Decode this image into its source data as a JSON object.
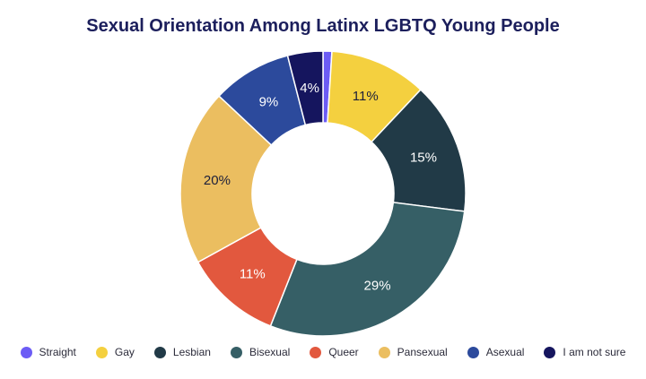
{
  "chart_data": {
    "type": "pie",
    "title": "Sexual Orientation Among Latinx LGBTQ Young People",
    "donut": true,
    "legend_position": "bottom",
    "slices": [
      {
        "label": "Straight",
        "value": 1,
        "display": "",
        "color": "#6c5cf5"
      },
      {
        "label": "Gay",
        "value": 11,
        "display": "11%",
        "color": "#f4d03f"
      },
      {
        "label": "Lesbian",
        "value": 15,
        "display": "15%",
        "color": "#213a47"
      },
      {
        "label": "Bisexual",
        "value": 29,
        "display": "29%",
        "color": "#365f66"
      },
      {
        "label": "Queer",
        "value": 11,
        "display": "11%",
        "color": "#e2583e"
      },
      {
        "label": "Pansexual",
        "value": 20,
        "display": "20%",
        "color": "#ebbe60"
      },
      {
        "label": "Asexual",
        "value": 9,
        "display": "9%",
        "color": "#2c4a9c"
      },
      {
        "label": "I am not sure",
        "value": 4,
        "display": "4%",
        "color": "#15155e"
      }
    ]
  }
}
